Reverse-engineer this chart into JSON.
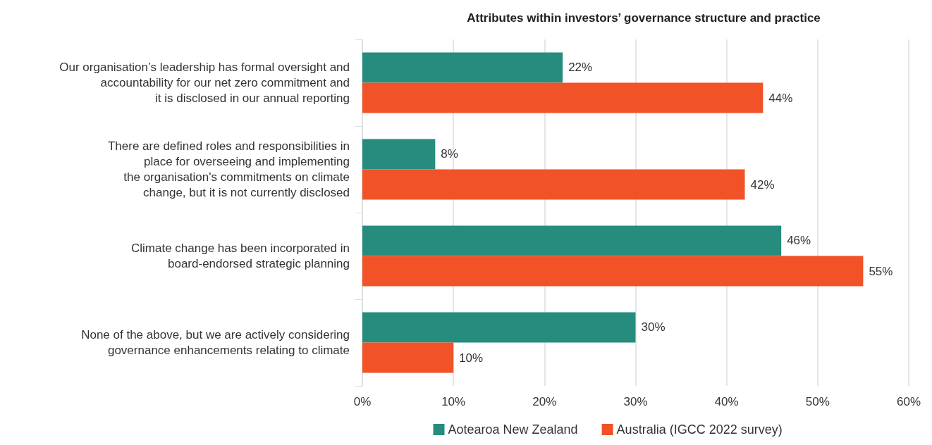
{
  "chart_data": {
    "type": "bar",
    "orientation": "horizontal",
    "title": "Attributes within investors’ governance structure and practice",
    "categories": [
      "Our organisation’s leadership has formal oversight and\naccountability for our net zero commitment and\nit is disclosed in our annual reporting",
      "There are defined roles and responsibilities in\nplace for overseeing and implementing\nthe organisation's commitments on climate\nchange, but it is not currently disclosed",
      "Climate change has been incorporated in\nboard-endorsed strategic planning",
      "None of the above, but we are actively considering\ngovernance enhancements relating to climate"
    ],
    "series": [
      {
        "name": "Aotearoa New Zealand",
        "color": "#268c7e",
        "values": [
          22,
          8,
          46,
          30
        ],
        "value_labels": [
          "22%",
          "8%",
          "46%",
          "30%"
        ]
      },
      {
        "name": "Australia (IGCC 2022 survey)",
        "color": "#f15227",
        "values": [
          44,
          42,
          55,
          10
        ],
        "value_labels": [
          "44%",
          "42%",
          "55%",
          "10%"
        ]
      }
    ],
    "xlim": [
      0,
      60
    ],
    "xticks": [
      {
        "value": 0,
        "label": "0%"
      },
      {
        "value": 10,
        "label": "10%"
      },
      {
        "value": 20,
        "label": "20%"
      },
      {
        "value": 30,
        "label": "30%"
      },
      {
        "value": 40,
        "label": "40%"
      },
      {
        "value": 50,
        "label": "50%"
      },
      {
        "value": 60,
        "label": "60%"
      }
    ],
    "grid": "x",
    "legend": "bottom"
  }
}
